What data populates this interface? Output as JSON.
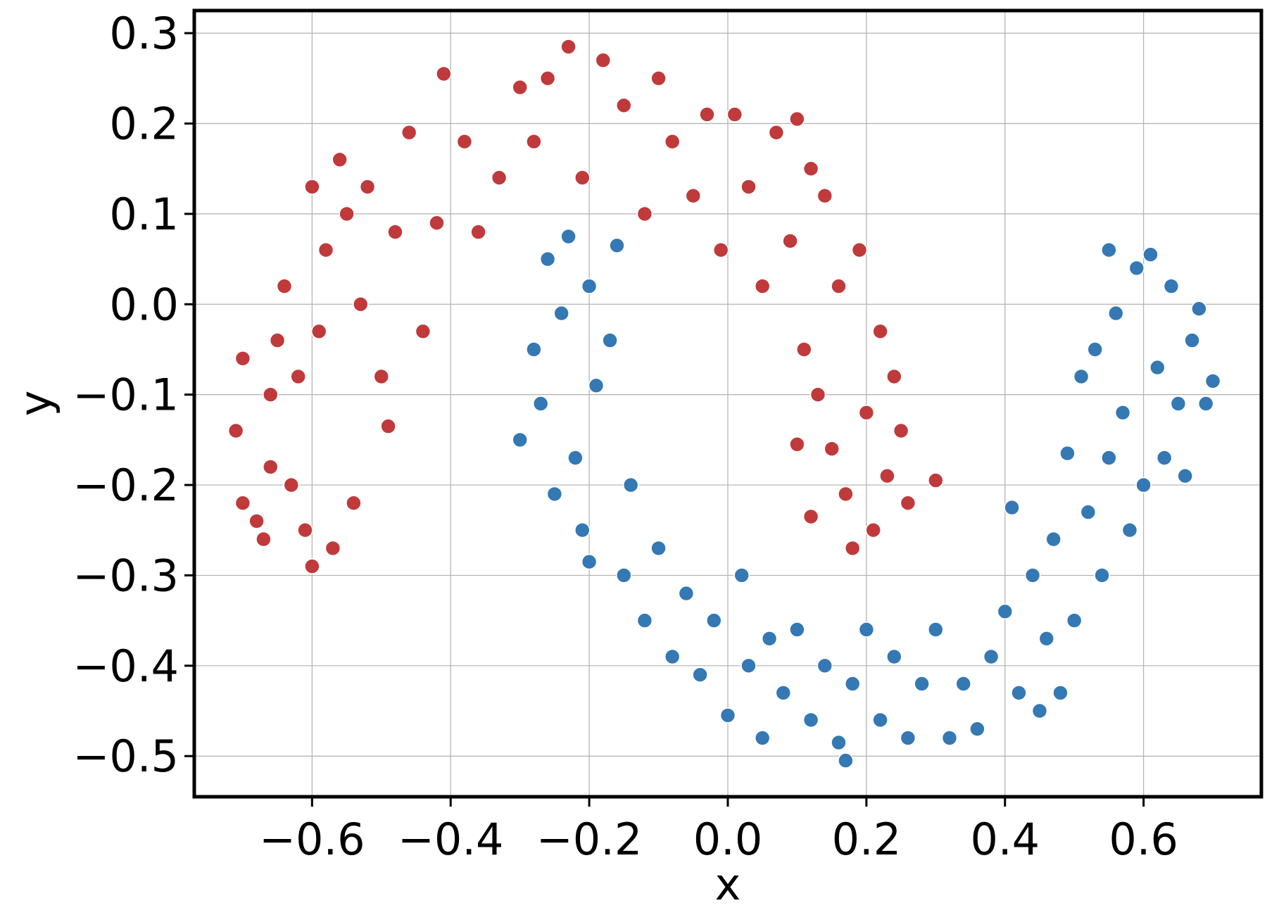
{
  "chart_data": {
    "type": "scatter",
    "title": "",
    "xlabel": "x",
    "ylabel": "y",
    "xlim": [
      -0.77,
      0.77
    ],
    "ylim": [
      -0.545,
      0.325
    ],
    "grid": true,
    "legend": "none",
    "x_ticks": [
      -0.6,
      -0.4,
      -0.2,
      0.0,
      0.2,
      0.4,
      0.6
    ],
    "x_tick_labels": [
      "−0.6",
      "−0.4",
      "−0.2",
      "0.0",
      "0.2",
      "0.4",
      "0.6"
    ],
    "y_ticks": [
      0.3,
      0.2,
      0.1,
      0.0,
      -0.1,
      -0.2,
      -0.3,
      -0.4,
      -0.5
    ],
    "y_tick_labels": [
      "0.3",
      "0.2",
      "0.1",
      "0.0",
      "−0.1",
      "−0.2",
      "−0.3",
      "−0.4",
      "−0.5"
    ],
    "series": [
      {
        "color": "#c0393b",
        "shape": "upper moon arc",
        "points": [
          [
            -0.7,
            -0.06
          ],
          [
            -0.71,
            -0.14
          ],
          [
            -0.7,
            -0.22
          ],
          [
            -0.68,
            -0.24
          ],
          [
            -0.67,
            -0.26
          ],
          [
            -0.66,
            -0.1
          ],
          [
            -0.66,
            -0.18
          ],
          [
            -0.65,
            -0.04
          ],
          [
            -0.64,
            0.02
          ],
          [
            -0.63,
            -0.2
          ],
          [
            -0.62,
            -0.08
          ],
          [
            -0.61,
            -0.25
          ],
          [
            -0.6,
            -0.29
          ],
          [
            -0.6,
            0.13
          ],
          [
            -0.59,
            -0.03
          ],
          [
            -0.58,
            0.06
          ],
          [
            -0.57,
            -0.27
          ],
          [
            -0.56,
            0.16
          ],
          [
            -0.55,
            0.1
          ],
          [
            -0.54,
            -0.22
          ],
          [
            -0.53,
            0.0
          ],
          [
            -0.52,
            0.13
          ],
          [
            -0.5,
            -0.08
          ],
          [
            -0.49,
            -0.135
          ],
          [
            -0.48,
            0.08
          ],
          [
            -0.46,
            0.19
          ],
          [
            -0.44,
            -0.03
          ],
          [
            -0.42,
            0.09
          ],
          [
            -0.41,
            0.255
          ],
          [
            -0.38,
            0.18
          ],
          [
            -0.36,
            0.08
          ],
          [
            -0.33,
            0.14
          ],
          [
            -0.3,
            0.24
          ],
          [
            -0.28,
            0.18
          ],
          [
            -0.26,
            0.25
          ],
          [
            -0.23,
            0.285
          ],
          [
            -0.21,
            0.14
          ],
          [
            -0.18,
            0.27
          ],
          [
            -0.15,
            0.22
          ],
          [
            -0.12,
            0.1
          ],
          [
            -0.1,
            0.25
          ],
          [
            -0.08,
            0.18
          ],
          [
            -0.05,
            0.12
          ],
          [
            -0.03,
            0.21
          ],
          [
            -0.01,
            0.06
          ],
          [
            0.01,
            0.21
          ],
          [
            0.03,
            0.13
          ],
          [
            0.05,
            0.02
          ],
          [
            0.07,
            0.19
          ],
          [
            0.09,
            0.07
          ],
          [
            0.1,
            0.205
          ],
          [
            0.11,
            -0.05
          ],
          [
            0.12,
            0.15
          ],
          [
            0.13,
            -0.1
          ],
          [
            0.14,
            0.12
          ],
          [
            0.15,
            -0.16
          ],
          [
            0.16,
            0.02
          ],
          [
            0.17,
            -0.21
          ],
          [
            0.18,
            -0.27
          ],
          [
            0.19,
            0.06
          ],
          [
            0.2,
            -0.12
          ],
          [
            0.21,
            -0.25
          ],
          [
            0.22,
            -0.03
          ],
          [
            0.23,
            -0.19
          ],
          [
            0.24,
            -0.08
          ],
          [
            0.25,
            -0.14
          ],
          [
            0.26,
            -0.22
          ],
          [
            0.3,
            -0.195
          ],
          [
            0.12,
            -0.235
          ],
          [
            0.1,
            -0.155
          ]
        ]
      },
      {
        "color": "#3478b4",
        "shape": "lower moon arc",
        "points": [
          [
            -0.3,
            -0.15
          ],
          [
            -0.28,
            -0.05
          ],
          [
            -0.27,
            -0.11
          ],
          [
            -0.26,
            0.05
          ],
          [
            -0.25,
            -0.21
          ],
          [
            -0.24,
            -0.01
          ],
          [
            -0.23,
            0.075
          ],
          [
            -0.22,
            -0.17
          ],
          [
            -0.21,
            -0.25
          ],
          [
            -0.2,
            0.02
          ],
          [
            -0.2,
            -0.285
          ],
          [
            -0.19,
            -0.09
          ],
          [
            -0.17,
            -0.04
          ],
          [
            -0.16,
            0.065
          ],
          [
            -0.15,
            -0.3
          ],
          [
            -0.14,
            -0.2
          ],
          [
            -0.12,
            -0.35
          ],
          [
            -0.1,
            -0.27
          ],
          [
            -0.08,
            -0.39
          ],
          [
            -0.06,
            -0.32
          ],
          [
            -0.04,
            -0.41
          ],
          [
            -0.02,
            -0.35
          ],
          [
            0.0,
            -0.455
          ],
          [
            0.02,
            -0.3
          ],
          [
            0.03,
            -0.4
          ],
          [
            0.05,
            -0.48
          ],
          [
            0.06,
            -0.37
          ],
          [
            0.08,
            -0.43
          ],
          [
            0.1,
            -0.36
          ],
          [
            0.12,
            -0.46
          ],
          [
            0.14,
            -0.4
          ],
          [
            0.16,
            -0.485
          ],
          [
            0.17,
            -0.505
          ],
          [
            0.18,
            -0.42
          ],
          [
            0.2,
            -0.36
          ],
          [
            0.22,
            -0.46
          ],
          [
            0.24,
            -0.39
          ],
          [
            0.26,
            -0.48
          ],
          [
            0.28,
            -0.42
          ],
          [
            0.3,
            -0.36
          ],
          [
            0.32,
            -0.48
          ],
          [
            0.34,
            -0.42
          ],
          [
            0.36,
            -0.47
          ],
          [
            0.38,
            -0.39
          ],
          [
            0.4,
            -0.34
          ],
          [
            0.41,
            -0.225
          ],
          [
            0.42,
            -0.43
          ],
          [
            0.44,
            -0.3
          ],
          [
            0.45,
            -0.45
          ],
          [
            0.46,
            -0.37
          ],
          [
            0.47,
            -0.26
          ],
          [
            0.48,
            -0.43
          ],
          [
            0.49,
            -0.165
          ],
          [
            0.5,
            -0.35
          ],
          [
            0.51,
            -0.08
          ],
          [
            0.52,
            -0.23
          ],
          [
            0.53,
            -0.05
          ],
          [
            0.54,
            -0.3
          ],
          [
            0.55,
            0.06
          ],
          [
            0.55,
            -0.17
          ],
          [
            0.56,
            -0.01
          ],
          [
            0.57,
            -0.12
          ],
          [
            0.58,
            -0.25
          ],
          [
            0.59,
            0.04
          ],
          [
            0.6,
            -0.2
          ],
          [
            0.61,
            0.055
          ],
          [
            0.62,
            -0.07
          ],
          [
            0.63,
            -0.17
          ],
          [
            0.64,
            0.02
          ],
          [
            0.65,
            -0.11
          ],
          [
            0.66,
            -0.19
          ],
          [
            0.67,
            -0.04
          ],
          [
            0.68,
            -0.005
          ],
          [
            0.69,
            -0.11
          ],
          [
            0.7,
            -0.085
          ]
        ]
      }
    ]
  }
}
